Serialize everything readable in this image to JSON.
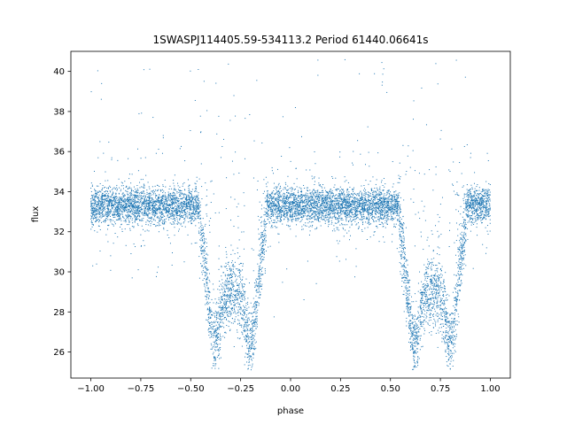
{
  "chart_data": {
    "type": "scatter",
    "title": "1SWASPJ114405.59-534113.2 Period 61440.06641s",
    "xlabel": "phase",
    "ylabel": "flux",
    "xlim": [
      -1.1,
      1.1
    ],
    "ylim": [
      24.7,
      41.0
    ],
    "xticks": [
      -1.0,
      -0.75,
      -0.5,
      -0.25,
      0.0,
      0.25,
      0.5,
      0.75,
      1.0
    ],
    "xtick_labels": [
      "−1.00",
      "−0.75",
      "−0.50",
      "−0.25",
      "0.00",
      "0.25",
      "0.50",
      "0.75",
      "1.00"
    ],
    "yticks": [
      26,
      28,
      30,
      32,
      34,
      36,
      38,
      40
    ],
    "ytick_labels": [
      "26",
      "28",
      "30",
      "32",
      "34",
      "36",
      "38",
      "40"
    ],
    "grid": false,
    "legend": "none",
    "marker_color": "#1f77b4",
    "baseline_flux": 33.3,
    "phase_range": [
      -1.0,
      1.0
    ],
    "eclipses": [
      {
        "phase_center": -0.29,
        "half_width": 0.17,
        "min_flux": 25.6,
        "shoulder_flux": 29.0
      },
      {
        "phase_center": 0.71,
        "half_width": 0.17,
        "min_flux": 25.6,
        "shoulder_flux": 29.0
      }
    ]
  }
}
